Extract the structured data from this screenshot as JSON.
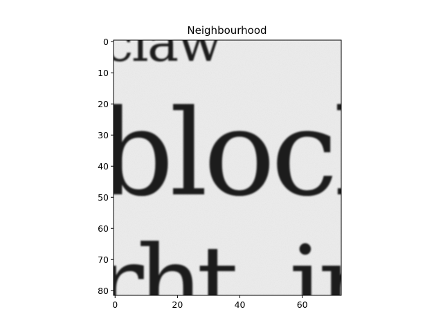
{
  "chart_data": {
    "type": "image",
    "title": "Neighbourhood",
    "xlabel": "",
    "ylabel": "",
    "image_shape": [
      82,
      73
    ],
    "xlim": [
      -0.5,
      72.5
    ],
    "ylim": [
      81.5,
      -0.5
    ],
    "x_ticks": [
      0,
      20,
      40,
      60
    ],
    "x_tick_labels": [
      "0",
      "20",
      "40",
      "60"
    ],
    "y_ticks": [
      0,
      10,
      20,
      30,
      40,
      50,
      60,
      70,
      80
    ],
    "y_tick_labels": [
      "0",
      "10",
      "20",
      "30",
      "40",
      "50",
      "60",
      "70",
      "80"
    ],
    "colormap": "gray",
    "background_color": "#ececec",
    "ink_color": "#1b1b1b",
    "grid": false,
    "legend": "none"
  }
}
